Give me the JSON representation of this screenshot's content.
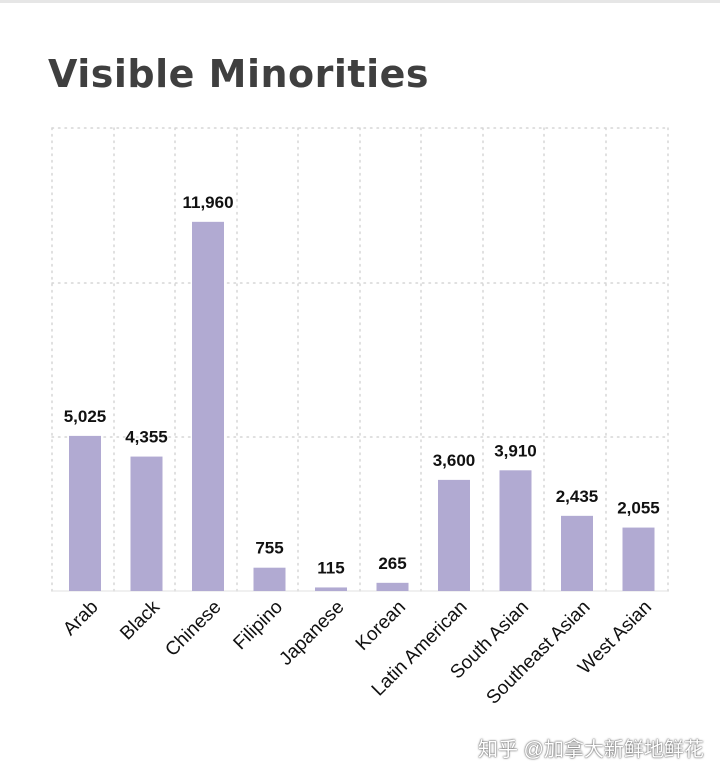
{
  "title": "Visible Minorities",
  "watermark": "知乎 @加拿大新鲜地鲜花",
  "colors": {
    "bar": "#b1aad2",
    "grid": "#d6d6d6",
    "label": "#111111",
    "title": "#3f3f3f"
  },
  "chart_data": {
    "type": "bar",
    "title": "Visible Minorities",
    "xlabel": "",
    "ylabel": "",
    "ylim": [
      0,
      15000
    ],
    "grid": true,
    "legend": "none",
    "categories": [
      "Arab",
      "Black",
      "Chinese",
      "Filipino",
      "Japanese",
      "Korean",
      "Latin American",
      "South Asian",
      "Southeast Asian",
      "West Asian"
    ],
    "values": [
      5025,
      4355,
      11960,
      755,
      115,
      265,
      3600,
      3910,
      2435,
      2055
    ],
    "value_labels": [
      "5,025",
      "4,355",
      "11,960",
      "755",
      "115",
      "265",
      "3,600",
      "3,910",
      "2,435",
      "2,055"
    ]
  }
}
